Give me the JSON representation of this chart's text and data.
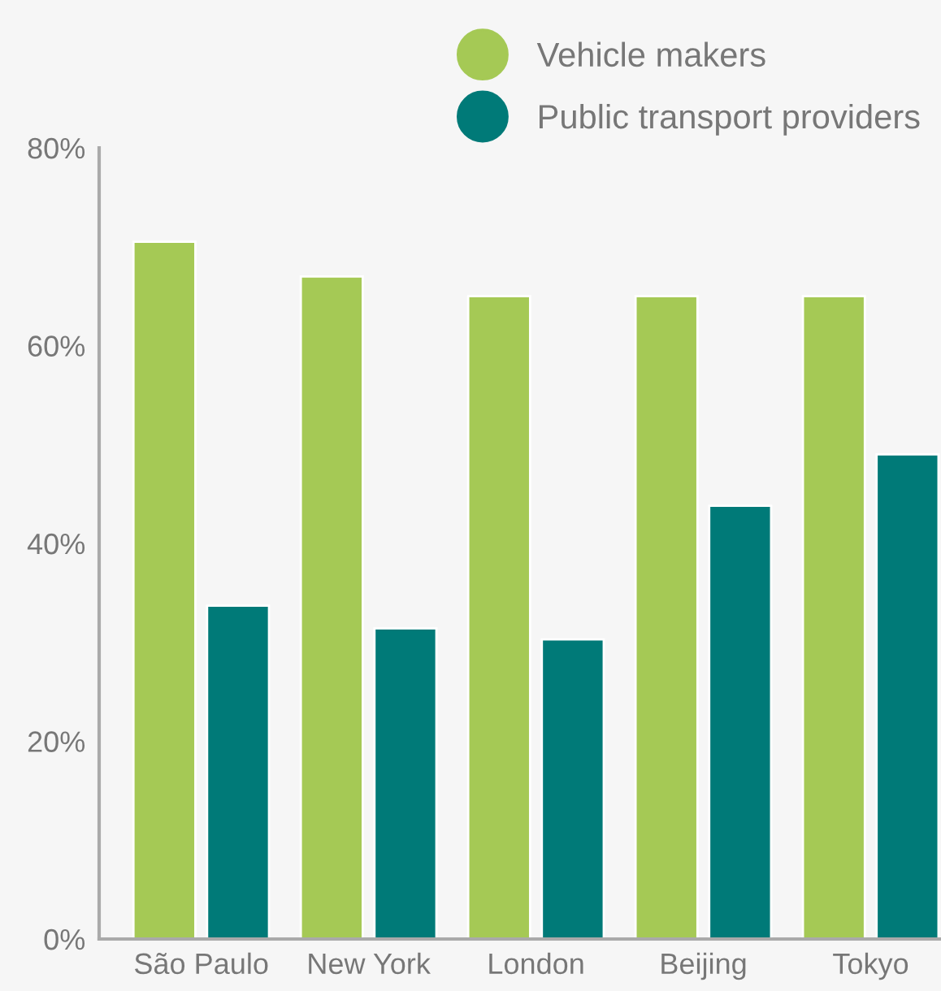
{
  "chart_data": {
    "type": "bar",
    "categories": [
      "São Paulo",
      "New York",
      "London",
      "Beijing",
      "Tokyo"
    ],
    "series": [
      {
        "name": "Vehicle makers",
        "color": "#a5c955",
        "values": [
          70.5,
          67,
          65,
          65,
          65
        ]
      },
      {
        "name": "Public transport providers",
        "color": "#007a78",
        "values": [
          33.7,
          31.4,
          30.3,
          43.8,
          49
        ]
      }
    ],
    "ylim": [
      0,
      80
    ],
    "yticks": [
      {
        "value": 0,
        "label": "0%"
      },
      {
        "value": 20,
        "label": "20%"
      },
      {
        "value": 40,
        "label": "40%"
      },
      {
        "value": 60,
        "label": "60%"
      },
      {
        "value": 80,
        "label": "80%"
      }
    ],
    "grid": false,
    "legend": "top right",
    "marker": "circle"
  }
}
